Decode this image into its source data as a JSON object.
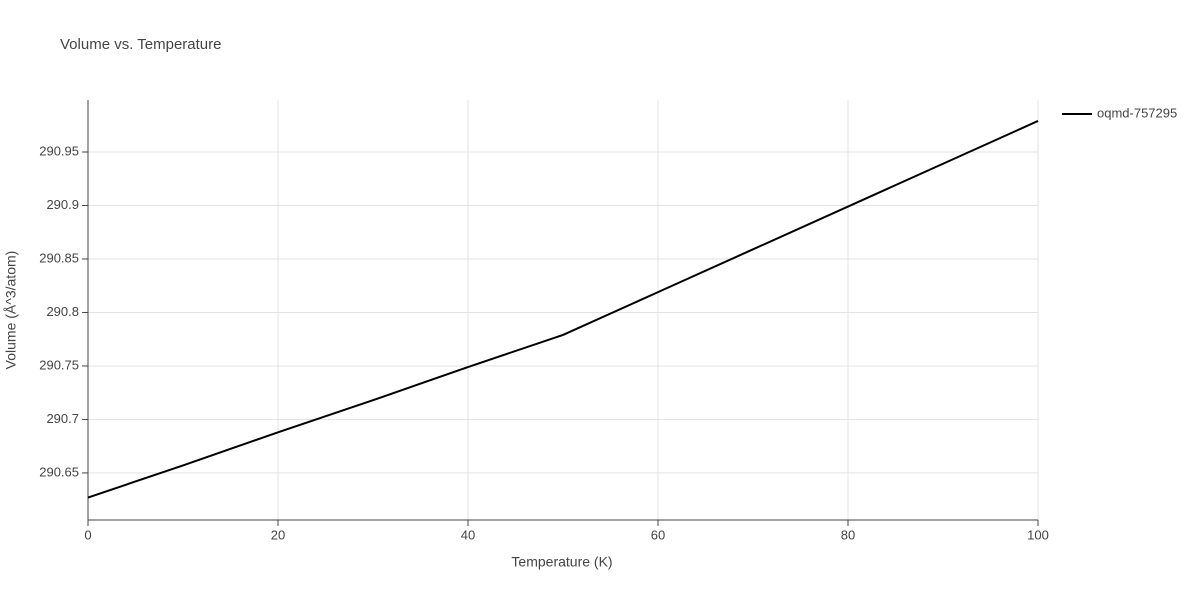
{
  "chart_data": {
    "type": "line",
    "title": "Volume vs. Temperature",
    "x_label": "Temperature (K)",
    "y_label": "Volume (Å^3/atom)",
    "x": [
      0,
      10,
      20,
      30,
      40,
      50,
      60,
      70,
      80,
      90,
      100
    ],
    "series": [
      {
        "name": "oqmd-757295",
        "color": "#000000",
        "values": [
          290.627,
          290.657,
          290.688,
          290.718,
          290.749,
          290.779,
          290.819,
          290.859,
          290.899,
          290.939,
          290.979
        ]
      }
    ],
    "xlim": [
      0,
      100
    ],
    "xticks": [
      0,
      20,
      40,
      60,
      80,
      100
    ],
    "ylim": [
      290.606,
      290.9986
    ],
    "yticks": [
      290.65,
      290.7,
      290.75,
      290.8,
      290.85,
      290.9,
      290.95
    ],
    "grid": true,
    "legend": "top-right"
  }
}
